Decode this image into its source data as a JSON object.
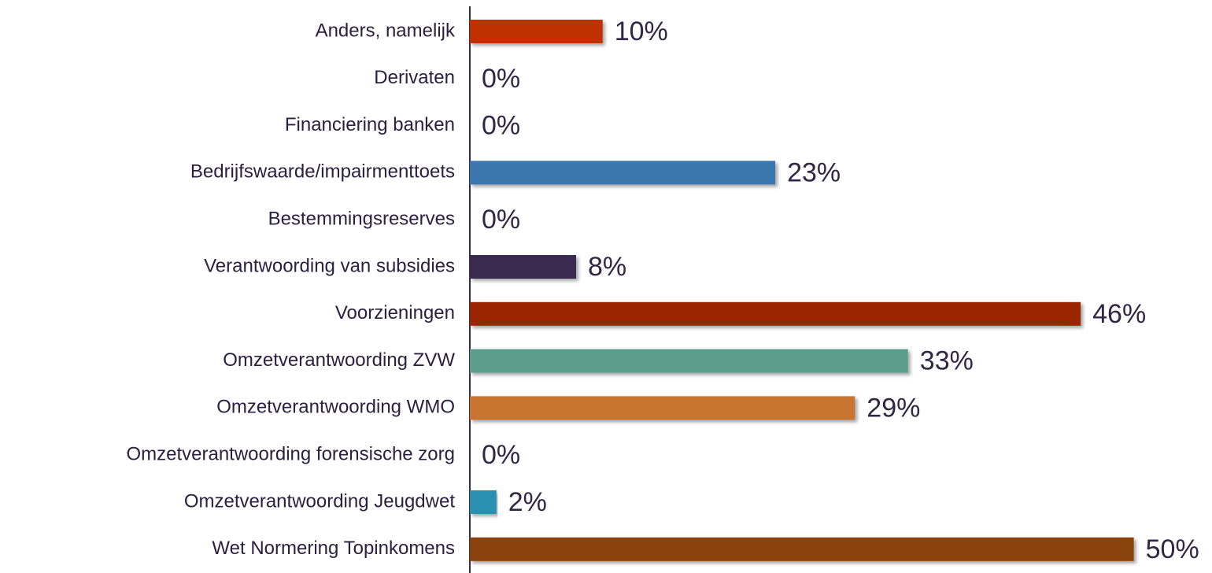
{
  "chart_data": {
    "type": "hbar",
    "categories": [
      "Anders, namelijk",
      "Derivaten",
      "Financiering banken",
      "Bedrijfswaarde/impairmenttoets",
      "Bestemmingsreserves",
      "Verantwoording van subsidies",
      "Voorzieningen",
      "Omzetverantwoording ZVW",
      "Omzetverantwoording WMO",
      "Omzetverantwoording forensische zorg",
      "Omzetverantwoording Jeugdwet",
      "Wet Normering Topinkomens"
    ],
    "values": [
      10,
      0,
      0,
      23,
      0,
      8,
      46,
      33,
      29,
      0,
      2,
      50
    ],
    "value_labels": [
      "10%",
      "0%",
      "0%",
      "23%",
      "0%",
      "8%",
      "46%",
      "33%",
      "29%",
      "0%",
      "2%",
      "50%"
    ],
    "colors": [
      "#bf3000",
      "#3a76ae",
      "#5b9d8c",
      "#3a76ae",
      "#c97430",
      "#3b2a4f",
      "#9a2800",
      "#5b9d8c",
      "#c97430",
      "#3b2a4f",
      "#2a8fb0",
      "#8a4208"
    ],
    "xlim": [
      0,
      55
    ]
  }
}
